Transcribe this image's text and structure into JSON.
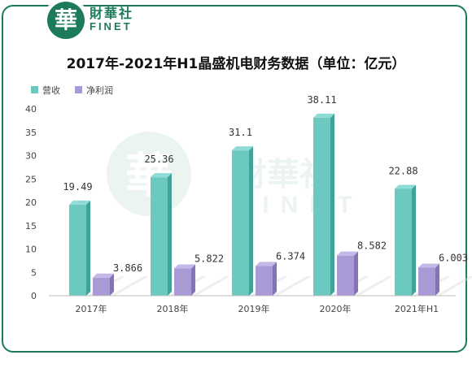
{
  "brand": {
    "logo_char": "華",
    "name_cn": "財華社",
    "name_en": "FINET"
  },
  "colors": {
    "brand": "#1e7a5c",
    "revenue": "#6cc9c0",
    "net_profit": "#a99ad6"
  },
  "chart_data": {
    "type": "bar",
    "title": "2017年-2021年H1晶盛机电财务数据（单位：亿元）",
    "categories": [
      "2017年",
      "2018年",
      "2019年",
      "2020年",
      "2021年H1"
    ],
    "series": [
      {
        "name": "营收",
        "values": [
          19.49,
          25.36,
          31.1,
          38.11,
          22.88
        ],
        "labels": [
          "19.49",
          "25.36",
          "31.1",
          "38.11",
          "22.88"
        ]
      },
      {
        "name": "净利润",
        "values": [
          3.866,
          5.822,
          6.374,
          8.582,
          6.003
        ],
        "labels": [
          "3.866",
          "5.822",
          "6.374",
          "8.582",
          "6.003"
        ]
      }
    ],
    "ylim": [
      0,
      40
    ],
    "yticks": [
      0,
      5,
      10,
      15,
      20,
      25,
      30,
      35,
      40
    ],
    "legend_position": "top-left",
    "grid": false
  }
}
